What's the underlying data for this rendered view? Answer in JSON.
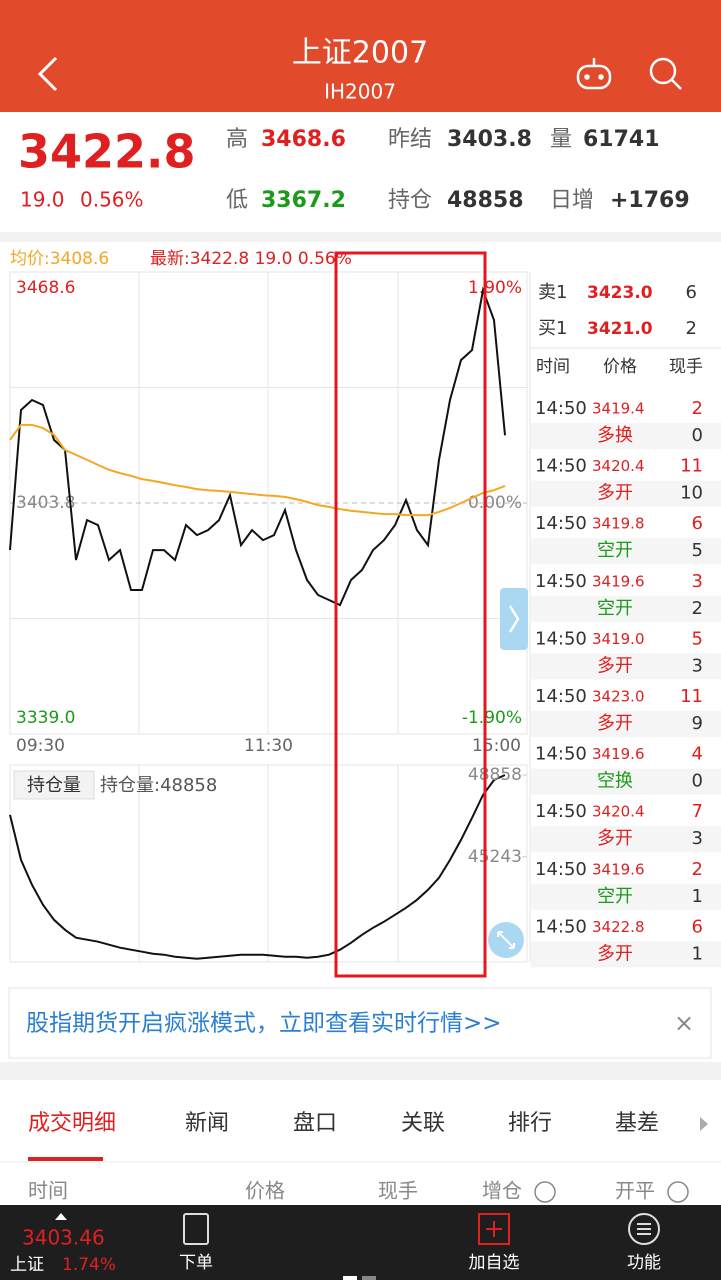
{
  "header": {
    "title": "上证2007",
    "subtitle": "IH2007"
  },
  "quote": {
    "price": "3422.8",
    "change": "19.0",
    "change_pct": "0.56%",
    "stats": [
      {
        "label": "高",
        "value": "3468.6",
        "color": "#e02020"
      },
      {
        "label": "昨结",
        "value": "3403.8",
        "color": "#333333"
      },
      {
        "label": "量",
        "value": "61741",
        "color": "#333333"
      },
      {
        "label": "低",
        "value": "3367.2",
        "color": "#1a9c1a"
      },
      {
        "label": "持仓",
        "value": "48858",
        "color": "#333333"
      },
      {
        "label": "日增",
        "value": "+1769",
        "color": "#333333"
      }
    ]
  },
  "price_chart": {
    "type": "line",
    "legend_avg": "均价:3408.6",
    "legend_last": "最新:3422.8 19.0 0.56%",
    "ylim": [
      3339.0,
      3468.6
    ],
    "yticks": [
      {
        "value": 3339.0,
        "label": "3339.0"
      },
      {
        "value": 3403.8,
        "label": "3403.8"
      },
      3468.6
    ],
    "ytick_colors": [
      "#1a9c1a",
      "#888888",
      "#e02020"
    ],
    "y2lim": [
      -1.9,
      1.9
    ],
    "y2ticks": [
      {
        "value": -1.9,
        "label": "-1.90%"
      },
      {
        "value": 0,
        "label": "0.00%"
      },
      {
        "value": 1.9,
        "label": "1.90%"
      }
    ],
    "xticks": [
      "09:30",
      "11:30",
      "15:00"
    ],
    "series": [
      {
        "color": "#111111",
        "values": [
          3390.6,
          3429.9,
          3432.7,
          3431.3,
          3421.5,
          3418.7,
          3387.8,
          3399.0,
          3397.6,
          3387.8,
          3390.6,
          3379.4,
          3379.4,
          3390.6,
          3390.6,
          3387.8,
          3397.6,
          3394.8,
          3396.2,
          3399.0,
          3406.0,
          3392.0,
          3396.2,
          3393.4,
          3394.8,
          3401.8,
          3390.6,
          3382.2,
          3378.0,
          3376.6,
          3375.2,
          3382.2,
          3385.0,
          3390.6,
          3393.4,
          3397.6,
          3404.6,
          3396.2,
          3392.0,
          3415.9,
          3432.7,
          3443.9,
          3446.7,
          3463.5,
          3455.1,
          3422.8,
          null,
          null
        ]
      },
      {
        "color": "#f5a623",
        "values": [
          3421.5,
          3425.7,
          3425.7,
          3424.8,
          3422.9,
          3418.7,
          3417.3,
          3415.9,
          3414.5,
          3413.1,
          3412.2,
          3411.4,
          3410.5,
          3410.0,
          3409.4,
          3408.8,
          3408.3,
          3407.7,
          3407.4,
          3407.2,
          3406.9,
          3406.6,
          3406.3,
          3406.0,
          3405.8,
          3405.5,
          3404.9,
          3404.1,
          3403.2,
          3402.7,
          3402.1,
          3401.6,
          3401.3,
          3401.0,
          3400.7,
          3400.7,
          3400.4,
          3400.4,
          3400.4,
          3401.3,
          3402.4,
          3403.8,
          3405.2,
          3406.6,
          3407.4,
          3408.6,
          null,
          null
        ]
      }
    ]
  },
  "oi_chart": {
    "type": "line",
    "button": "持仓量",
    "legend": "持仓量:48858",
    "ylim": [
      40600,
      49300
    ],
    "yticks": [
      45243,
      48858
    ],
    "series": [
      {
        "color": "#111111",
        "values": [
          47095,
          45111,
          44008,
          43126,
          42465,
          42024,
          41671,
          41583,
          41495,
          41362,
          41230,
          41142,
          41053,
          40965,
          40921,
          40833,
          40789,
          40745,
          40789,
          40833,
          40877,
          40921,
          40921,
          40921,
          40877,
          40833,
          40833,
          40789,
          40833,
          40921,
          41142,
          41450,
          41803,
          42112,
          42378,
          42685,
          42994,
          43347,
          43788,
          44317,
          45111,
          45993,
          46963,
          47977,
          48639,
          48858,
          null,
          null
        ]
      }
    ]
  },
  "order_book": {
    "asks": [
      {
        "label": "卖1",
        "price": "3423.0",
        "volume": "6"
      }
    ],
    "bids": [
      {
        "label": "买1",
        "price": "3421.0",
        "volume": "2"
      }
    ],
    "headers": [
      "时间",
      "价格",
      "现手"
    ],
    "trades": [
      {
        "time": "14:50",
        "price": "3419.4",
        "volume": "2",
        "type": "多换",
        "open": "0",
        "color": "#e02020"
      },
      {
        "time": "14:50",
        "price": "3420.4",
        "volume": "11",
        "type": "多开",
        "open": "10",
        "color": "#e02020"
      },
      {
        "time": "14:50",
        "price": "3419.8",
        "volume": "6",
        "type": "空开",
        "open": "5",
        "color": "#1a9c1a"
      },
      {
        "time": "14:50",
        "price": "3419.6",
        "volume": "3",
        "type": "空开",
        "open": "2",
        "color": "#1a9c1a"
      },
      {
        "time": "14:50",
        "price": "3419.0",
        "volume": "5",
        "type": "多开",
        "open": "3",
        "color": "#e02020"
      },
      {
        "time": "14:50",
        "price": "3423.0",
        "volume": "11",
        "type": "多开",
        "open": "9",
        "color": "#e02020"
      },
      {
        "time": "14:50",
        "price": "3419.6",
        "volume": "4",
        "type": "空换",
        "open": "0",
        "color": "#1a9c1a"
      },
      {
        "time": "14:50",
        "price": "3420.4",
        "volume": "7",
        "type": "多开",
        "open": "3",
        "color": "#e02020"
      },
      {
        "time": "14:50",
        "price": "3419.6",
        "volume": "2",
        "type": "空开",
        "open": "1",
        "color": "#1a9c1a"
      },
      {
        "time": "14:50",
        "price": "3422.8",
        "volume": "6",
        "type": "多开",
        "open": "1",
        "color": "#e02020"
      }
    ]
  },
  "banner": {
    "text": "股指期货开启疯涨模式，立即查看实时行情>>",
    "close": "×"
  },
  "tabs": [
    "成交明细",
    "新闻",
    "盘口",
    "关联",
    "排行",
    "基差"
  ],
  "table_headers": [
    "时间",
    "价格",
    "现手",
    "增仓",
    "开平"
  ],
  "bottom_bar": {
    "index_value": "3403.46",
    "index_name": "上证",
    "index_pct": "1.74%",
    "items": [
      "下单",
      "加自选",
      "功能"
    ]
  }
}
